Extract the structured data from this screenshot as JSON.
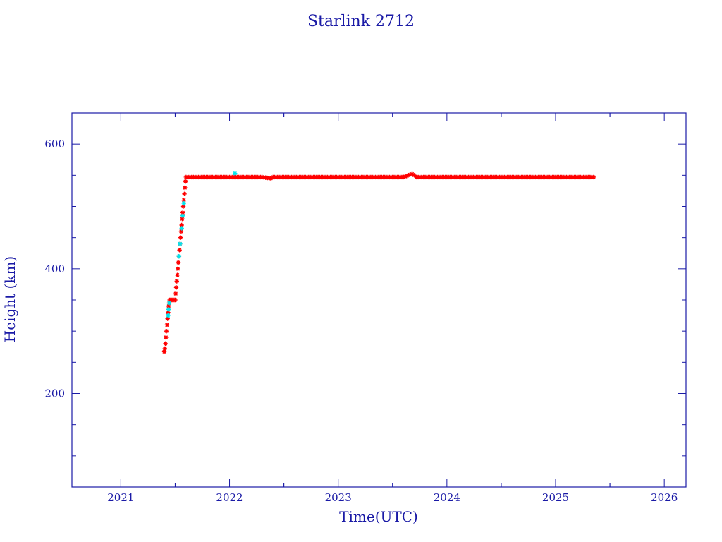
{
  "chart_data": {
    "type": "scatter",
    "title": "Starlink 2712",
    "xlabel": "Time(UTC)",
    "ylabel": "Height (km)",
    "xlim": [
      2020.55,
      2026.2
    ],
    "ylim": [
      50,
      650
    ],
    "x_ticks": [
      2021,
      2022,
      2023,
      2024,
      2025,
      2026
    ],
    "y_ticks": [
      200,
      400,
      600
    ],
    "colors": {
      "axes": "#1a1aa6",
      "primary_points": "#ff0000",
      "secondary_points": "#00e5ee"
    },
    "series": [
      {
        "color": "red",
        "points": [
          [
            2021.4,
            267
          ],
          [
            2021.405,
            272
          ],
          [
            2021.41,
            280
          ],
          [
            2021.415,
            290
          ],
          [
            2021.42,
            300
          ],
          [
            2021.425,
            310
          ],
          [
            2021.43,
            320
          ],
          [
            2021.435,
            330
          ],
          [
            2021.44,
            340
          ],
          [
            2021.445,
            345
          ],
          [
            2021.45,
            350
          ],
          [
            2021.46,
            350
          ],
          [
            2021.47,
            350
          ],
          [
            2021.48,
            350
          ],
          [
            2021.49,
            350
          ],
          [
            2021.5,
            350
          ],
          [
            2021.505,
            360
          ],
          [
            2021.51,
            370
          ],
          [
            2021.515,
            380
          ],
          [
            2021.52,
            390
          ],
          [
            2021.525,
            400
          ],
          [
            2021.53,
            410
          ],
          [
            2021.535,
            420
          ],
          [
            2021.54,
            430
          ],
          [
            2021.545,
            440
          ],
          [
            2021.55,
            450
          ],
          [
            2021.555,
            460
          ],
          [
            2021.56,
            470
          ],
          [
            2021.565,
            480
          ],
          [
            2021.57,
            490
          ],
          [
            2021.575,
            500
          ],
          [
            2021.58,
            510
          ],
          [
            2021.585,
            520
          ],
          [
            2021.59,
            530
          ],
          [
            2021.595,
            540
          ],
          [
            2021.6,
            547
          ],
          [
            2021.62,
            547
          ],
          [
            2021.7,
            547
          ],
          [
            2021.8,
            547
          ],
          [
            2021.9,
            547
          ],
          [
            2022.0,
            547
          ],
          [
            2022.1,
            547
          ],
          [
            2022.2,
            547
          ],
          [
            2022.3,
            547
          ],
          [
            2022.38,
            545
          ],
          [
            2022.4,
            547
          ],
          [
            2022.5,
            547
          ],
          [
            2022.6,
            547
          ],
          [
            2022.7,
            547
          ],
          [
            2022.8,
            547
          ],
          [
            2022.9,
            547
          ],
          [
            2023.0,
            547
          ],
          [
            2023.1,
            547
          ],
          [
            2023.2,
            547
          ],
          [
            2023.3,
            547
          ],
          [
            2023.4,
            547
          ],
          [
            2023.5,
            547
          ],
          [
            2023.6,
            547
          ],
          [
            2023.66,
            551
          ],
          [
            2023.68,
            552
          ],
          [
            2023.7,
            550
          ],
          [
            2023.72,
            547
          ],
          [
            2023.8,
            547
          ],
          [
            2023.9,
            547
          ],
          [
            2024.0,
            547
          ],
          [
            2024.1,
            547
          ],
          [
            2024.2,
            547
          ],
          [
            2024.3,
            547
          ],
          [
            2024.4,
            547
          ],
          [
            2024.5,
            547
          ],
          [
            2024.6,
            547
          ],
          [
            2024.7,
            547
          ],
          [
            2024.8,
            547
          ],
          [
            2024.9,
            547
          ],
          [
            2025.0,
            547
          ],
          [
            2025.1,
            547
          ],
          [
            2025.2,
            547
          ],
          [
            2025.3,
            547
          ],
          [
            2025.35,
            547
          ]
        ]
      },
      {
        "color": "cyan",
        "points": [
          [
            2021.435,
            325
          ],
          [
            2021.44,
            335
          ],
          [
            2021.445,
            345
          ],
          [
            2021.535,
            420
          ],
          [
            2021.545,
            440
          ],
          [
            2021.56,
            465
          ],
          [
            2021.57,
            485
          ],
          [
            2021.58,
            505
          ],
          [
            2022.05,
            553
          ]
        ]
      }
    ]
  }
}
